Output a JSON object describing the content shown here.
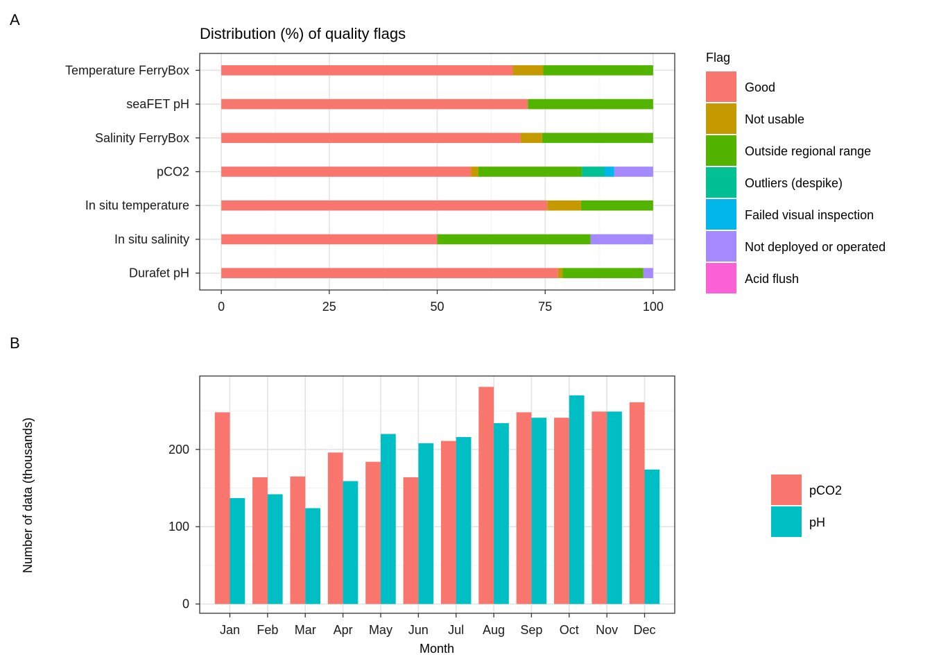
{
  "chart_data": [
    {
      "type": "bar",
      "orientation": "horizontal",
      "stacked": true,
      "panel_label": "A",
      "title": "Distribution (%) of quality flags",
      "xlabel": "",
      "ylabel": "",
      "xlim": [
        0,
        100
      ],
      "xticks": [
        0,
        25,
        50,
        75,
        100
      ],
      "grid": true,
      "legend_title": "Flag",
      "legend_position": "right",
      "categories": [
        "Temperature FerryBox",
        "seaFET pH",
        "Salinity FerryBox",
        "pCO2",
        "In situ temperature",
        "In situ salinity",
        "Durafet pH"
      ],
      "series": [
        {
          "name": "Good",
          "color": "#F8766D",
          "values": [
            67.5,
            71,
            69.3,
            57.8,
            75.5,
            50,
            78
          ]
        },
        {
          "name": "Not usable",
          "color": "#C49A00",
          "values": [
            7,
            0,
            5,
            1.7,
            7.8,
            0,
            1
          ]
        },
        {
          "name": "Outside regional range",
          "color": "#53B400",
          "values": [
            25.5,
            29,
            25.7,
            24,
            16.7,
            35.5,
            18.7
          ]
        },
        {
          "name": "Outliers (despike)",
          "color": "#00C094",
          "values": [
            0,
            0,
            0,
            5.2,
            0,
            0,
            0
          ]
        },
        {
          "name": "Failed visual inspection",
          "color": "#00B6EB",
          "values": [
            0,
            0,
            0,
            2.3,
            0,
            0,
            0
          ]
        },
        {
          "name": "Not deployed or operated",
          "color": "#A58AFF",
          "values": [
            0,
            0,
            0,
            9,
            0,
            14.5,
            2.3
          ]
        },
        {
          "name": "Acid flush",
          "color": "#FB61D7",
          "values": [
            0,
            0,
            0,
            0,
            0,
            0,
            0
          ]
        }
      ]
    },
    {
      "type": "bar",
      "orientation": "vertical",
      "grouped": true,
      "panel_label": "B",
      "title": "",
      "xlabel": "Month",
      "ylabel": "Number of data (thousands)",
      "ylim": [
        -12,
        295
      ],
      "yticks": [
        0,
        100,
        200
      ],
      "grid": true,
      "legend_position": "right",
      "categories": [
        "Jan",
        "Feb",
        "Mar",
        "Apr",
        "May",
        "Jun",
        "Jul",
        "Aug",
        "Sep",
        "Oct",
        "Nov",
        "Dec"
      ],
      "series": [
        {
          "name": "pCO2",
          "color": "#F8766D",
          "values": [
            248,
            164,
            165,
            196,
            184,
            164,
            211,
            281,
            248,
            241,
            249,
            261
          ]
        },
        {
          "name": "pH",
          "color": "#00BFC4",
          "values": [
            137,
            142,
            124,
            159,
            220,
            208,
            216,
            234,
            241,
            270,
            249,
            174
          ]
        }
      ]
    }
  ]
}
